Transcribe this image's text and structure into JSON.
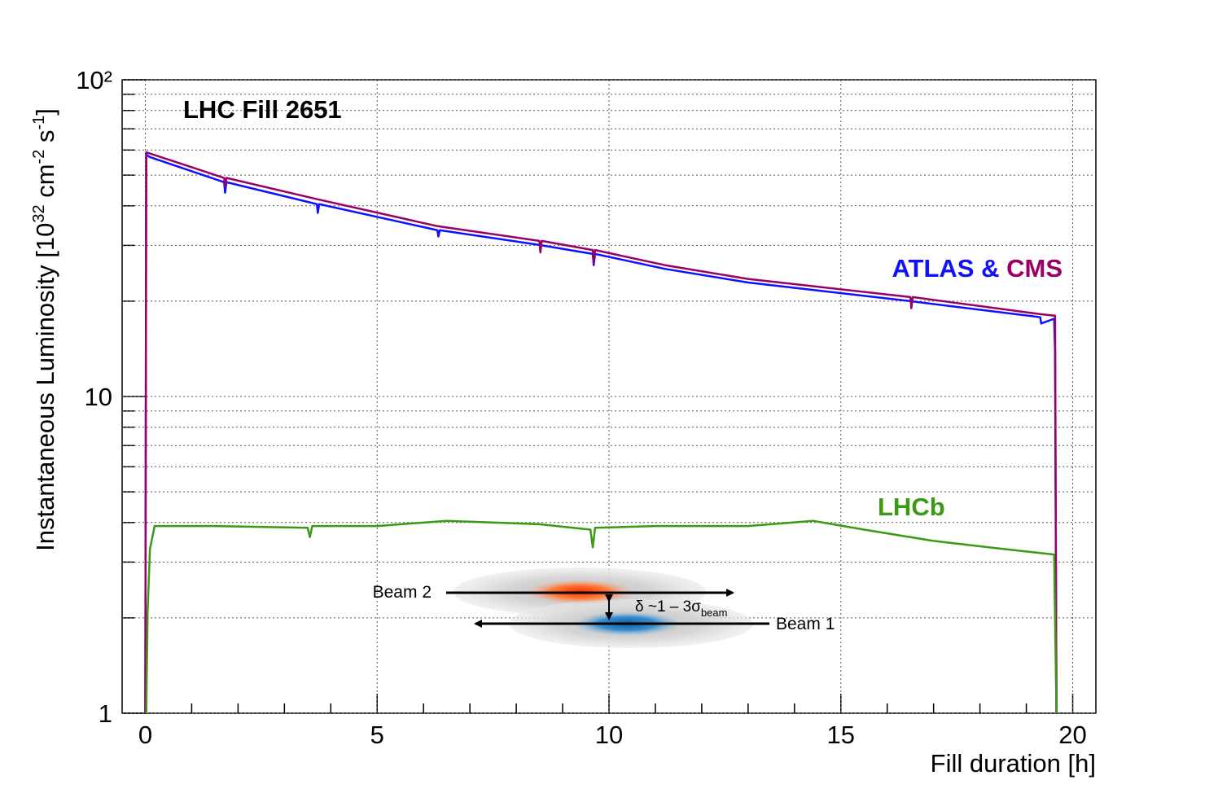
{
  "chart_data": {
    "type": "line",
    "title": "LHC Fill 2651",
    "x_label": "Fill duration [h]",
    "y_label": [
      "Instantaneous Luminosity [10",
      "32",
      " cm",
      "-2",
      " s",
      "-1",
      "]"
    ],
    "xlim": [
      -0.5,
      20.5
    ],
    "xticks": [
      0,
      5,
      10,
      15,
      20
    ],
    "xticks_minor": [
      1,
      2,
      3,
      4,
      6,
      7,
      8,
      9,
      11,
      12,
      13,
      14,
      16,
      17,
      18,
      19
    ],
    "ylim": [
      1,
      100
    ],
    "ylog": true,
    "yticks": [
      1,
      10,
      {
        "value": 100,
        "label": "10²"
      }
    ],
    "yticks_minor": [
      2,
      3,
      4,
      5,
      6,
      7,
      8,
      9,
      20,
      30,
      40,
      50,
      60,
      70,
      80,
      90
    ],
    "grid": true,
    "legend_joiner": "&",
    "series": [
      {
        "name": "ATLAS",
        "color": "#1010ff",
        "x": [
          0,
          0.02,
          0.1,
          1.7,
          1.72,
          1.75,
          3.7,
          3.72,
          3.75,
          6.3,
          6.32,
          6.35,
          8.5,
          9.65,
          9.67,
          9.7,
          11.2,
          13,
          14.4,
          16.5,
          19.3,
          19.32,
          19.6,
          19.62,
          19.65
        ],
        "values": [
          1,
          58,
          57,
          47.5,
          44,
          47.5,
          40.5,
          38,
          40.5,
          33.5,
          32,
          33.5,
          30.1,
          28.2,
          26,
          28.2,
          25.3,
          22.9,
          21.7,
          20,
          17.8,
          17,
          17.6,
          14,
          1
        ]
      },
      {
        "name": "CMS",
        "color": "#990066",
        "x": [
          0,
          0.02,
          0.1,
          1.7,
          1.72,
          1.75,
          3.7,
          6.3,
          8.5,
          8.52,
          8.55,
          9.65,
          9.67,
          9.7,
          11.2,
          13,
          14.4,
          16.5,
          16.52,
          16.55,
          19.3,
          19.62,
          19.65
        ],
        "values": [
          1,
          59,
          58.5,
          49,
          46,
          49,
          42,
          34.5,
          31,
          28.5,
          31,
          29,
          26.5,
          29,
          26,
          23.5,
          22.3,
          20.6,
          19,
          20.6,
          18.2,
          18,
          1
        ]
      },
      {
        "name": "LHCb",
        "color": "#3a9a13",
        "x": [
          0.02,
          0.05,
          0.1,
          0.2,
          1.5,
          3.5,
          3.55,
          3.6,
          5,
          6.5,
          8.5,
          9.6,
          9.65,
          9.7,
          11,
          13,
          14.4,
          15.5,
          17,
          18.5,
          19.6,
          19.65
        ],
        "values": [
          1,
          2.1,
          3.3,
          3.9,
          3.9,
          3.85,
          3.6,
          3.9,
          3.9,
          4.05,
          3.95,
          3.8,
          3.34,
          3.85,
          3.9,
          3.9,
          4.05,
          3.8,
          3.5,
          3.3,
          3.17,
          1
        ]
      }
    ],
    "inset": {
      "beam2": "Beam 2",
      "beam1": "Beam 1",
      "separation": "δ ~1 – 3σ",
      "separation_sub": "beam"
    }
  }
}
